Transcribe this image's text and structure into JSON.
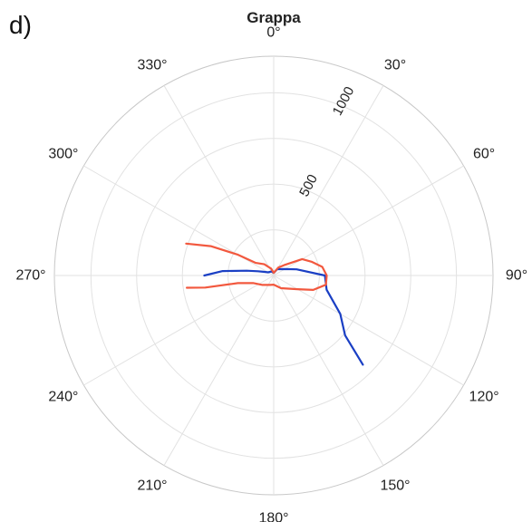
{
  "panel_label": "d)",
  "chart_data": {
    "type": "line",
    "projection": "polar",
    "title": "Grappa",
    "theta_zero": "top",
    "theta_direction": "clockwise",
    "theta_ticks": [
      "0°",
      "30°",
      "60°",
      "90°",
      "120°",
      "150°",
      "180°",
      "210°",
      "240°",
      "270°",
      "300°",
      "330°"
    ],
    "rlim": [
      0,
      1200
    ],
    "r_grid": [
      250,
      500,
      750,
      1000,
      1200
    ],
    "r_tick_labels": [
      {
        "value": 500,
        "label": "500"
      },
      {
        "value": 1000,
        "label": "1000"
      }
    ],
    "r_label_angle": 22.5,
    "grid": true,
    "series": [
      {
        "color": "#1a3fc4",
        "points": [
          [
            270,
            380
          ],
          [
            275,
            280
          ],
          [
            280,
            150
          ],
          [
            285,
            90
          ],
          [
            290,
            60
          ],
          [
            300,
            35
          ],
          [
            330,
            25
          ],
          [
            0,
            15
          ],
          [
            30,
            40
          ],
          [
            60,
            70
          ],
          [
            75,
            130
          ],
          [
            90,
            280
          ],
          [
            105,
            300
          ],
          [
            120,
            420
          ],
          [
            130,
            510
          ],
          [
            135,
            690
          ]
        ]
      },
      {
        "color": "#f2583e",
        "points": [
          [
            290,
            510
          ],
          [
            295,
            380
          ],
          [
            300,
            230
          ],
          [
            305,
            120
          ],
          [
            320,
            80
          ],
          [
            340,
            40
          ],
          [
            0,
            15
          ],
          [
            30,
            50
          ],
          [
            45,
            80
          ],
          [
            60,
            180
          ],
          [
            70,
            220
          ],
          [
            80,
            270
          ],
          [
            90,
            290
          ],
          [
            100,
            290
          ],
          [
            110,
            230
          ],
          [
            120,
            150
          ],
          [
            150,
            80
          ],
          [
            180,
            50
          ],
          [
            200,
            55
          ],
          [
            230,
            80
          ],
          [
            250,
            120
          ],
          [
            258,
            200
          ],
          [
            260,
            380
          ],
          [
            262,
            480
          ]
        ]
      }
    ]
  }
}
